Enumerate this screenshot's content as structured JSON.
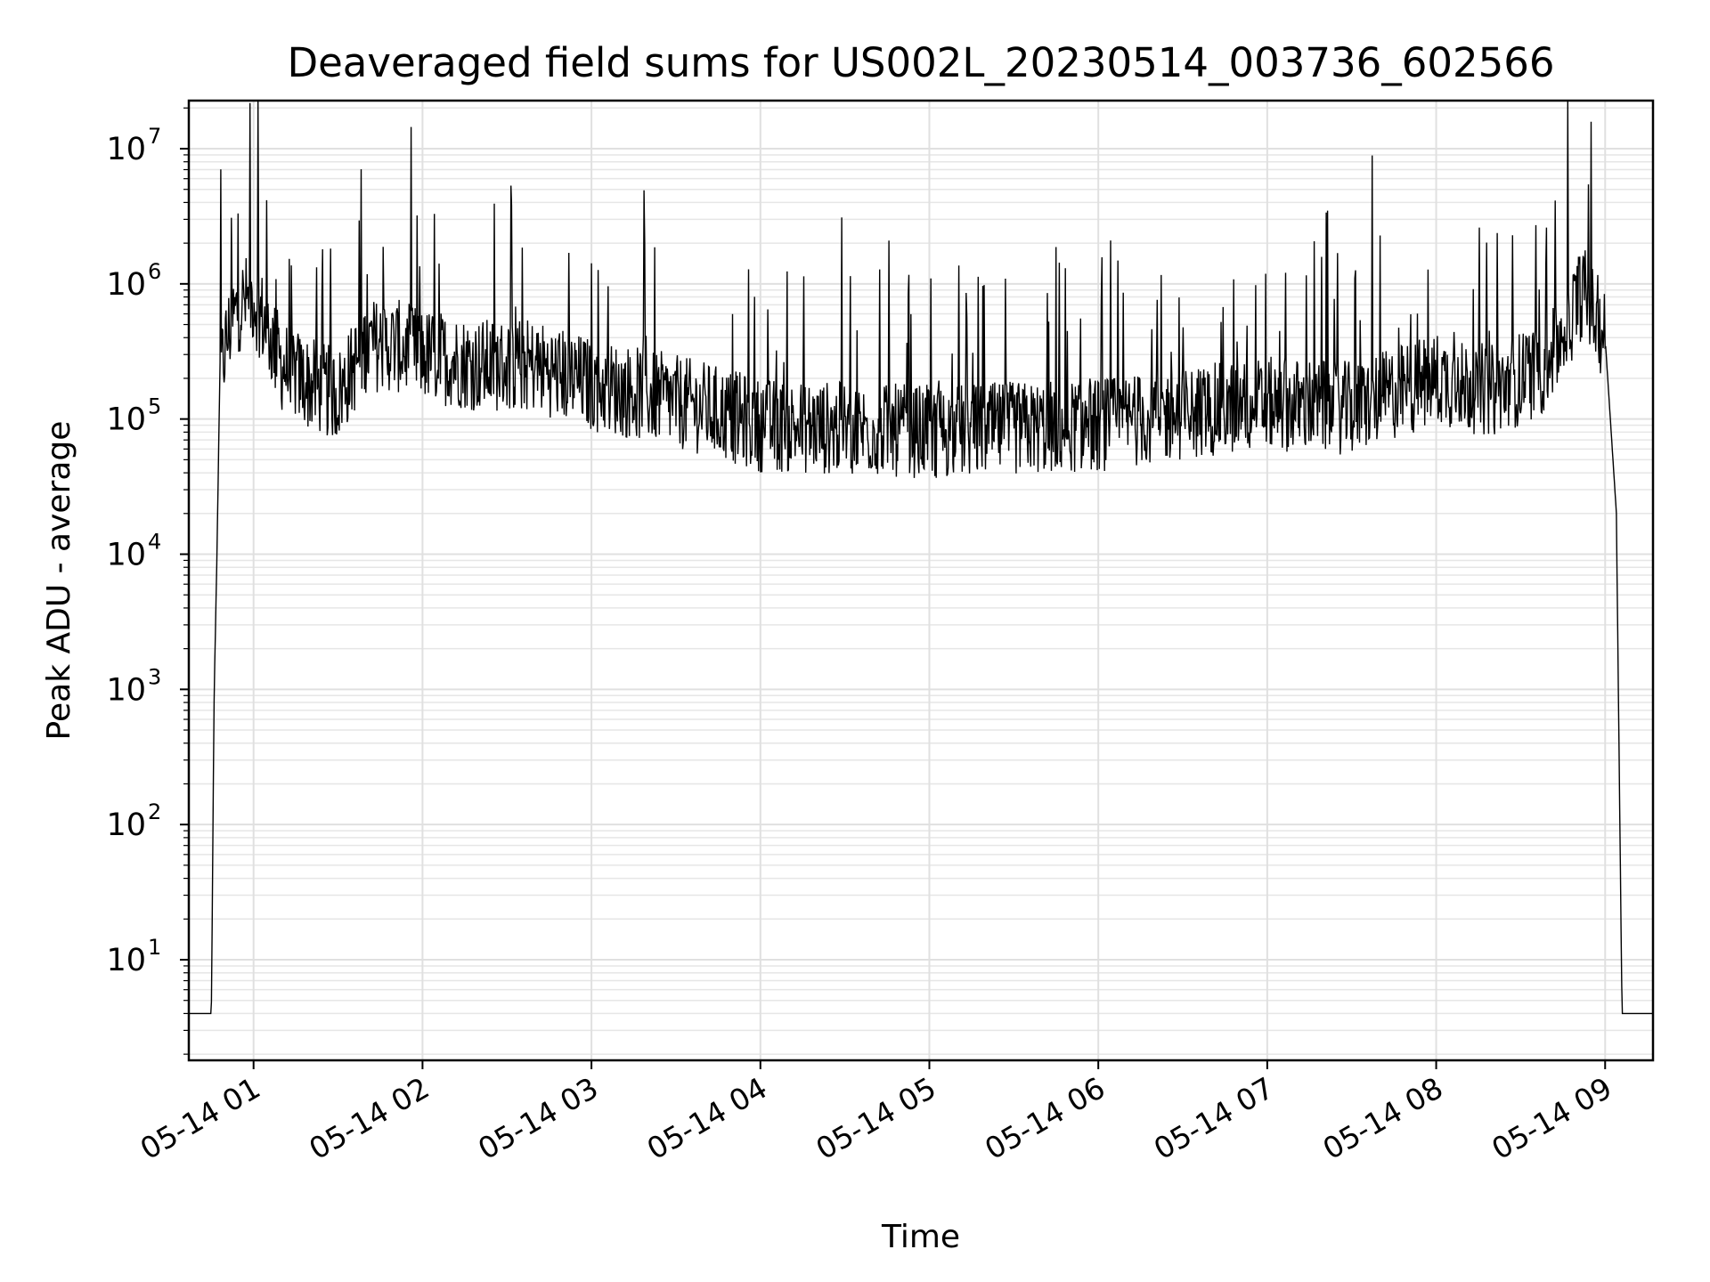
{
  "chart_data": {
    "type": "line",
    "title": "Deaveraged field sums for US002L_20230514_003736_602566",
    "xlabel": "Time",
    "ylabel": "Peak ADU - average",
    "yscale": "log",
    "ylim": [
      1.7,
      22000000
    ],
    "xlim": [
      "2023-05-14 00:37",
      "2023-05-14 09:17"
    ],
    "grid": true,
    "line_color": "#000000",
    "x_ticks": [
      "05-14 01",
      "05-14 02",
      "05-14 03",
      "05-14 04",
      "05-14 05",
      "05-14 06",
      "05-14 07",
      "05-14 08",
      "05-14 09"
    ],
    "y_ticks": [
      {
        "base": "10",
        "exp": "1"
      },
      {
        "base": "10",
        "exp": "2"
      },
      {
        "base": "10",
        "exp": "3"
      },
      {
        "base": "10",
        "exp": "4"
      },
      {
        "base": "10",
        "exp": "5"
      },
      {
        "base": "10",
        "exp": "6"
      },
      {
        "base": "10",
        "exp": "7"
      }
    ],
    "series": [
      {
        "x": [
          "2023-05-14 00:37",
          "2023-05-14 00:45",
          "2023-05-14 00:46",
          "2023-05-14 00:47",
          "2023-05-14 00:48",
          "2023-05-14 00:50",
          "2023-05-14 00:52",
          "2023-05-14 00:55",
          "2023-05-14 01:00",
          "2023-05-14 01:10",
          "2023-05-14 01:20",
          "2023-05-14 01:30",
          "2023-05-14 01:40",
          "2023-05-14 01:50",
          "2023-05-14 02:00",
          "2023-05-14 02:20",
          "2023-05-14 02:40",
          "2023-05-14 03:00",
          "2023-05-14 03:20",
          "2023-05-14 03:40",
          "2023-05-14 04:00",
          "2023-05-14 04:30",
          "2023-05-14 05:00",
          "2023-05-14 05:30",
          "2023-05-14 06:00",
          "2023-05-14 06:30",
          "2023-05-14 07:00",
          "2023-05-14 07:30",
          "2023-05-14 08:00",
          "2023-05-14 08:20",
          "2023-05-14 08:40",
          "2023-05-14 08:52",
          "2023-05-14 09:00",
          "2023-05-14 09:04",
          "2023-05-14 09:06",
          "2023-05-14 09:17"
        ],
        "values": [
          4,
          4,
          900,
          10000,
          200000,
          350000,
          500000,
          700000,
          800000,
          250000,
          180000,
          150000,
          350000,
          350000,
          300000,
          250000,
          250000,
          180000,
          150000,
          120000,
          90000,
          85000,
          80000,
          85000,
          90000,
          110000,
          130000,
          120000,
          200000,
          160000,
          250000,
          900000,
          400000,
          20000,
          4,
          4
        ]
      }
    ]
  }
}
